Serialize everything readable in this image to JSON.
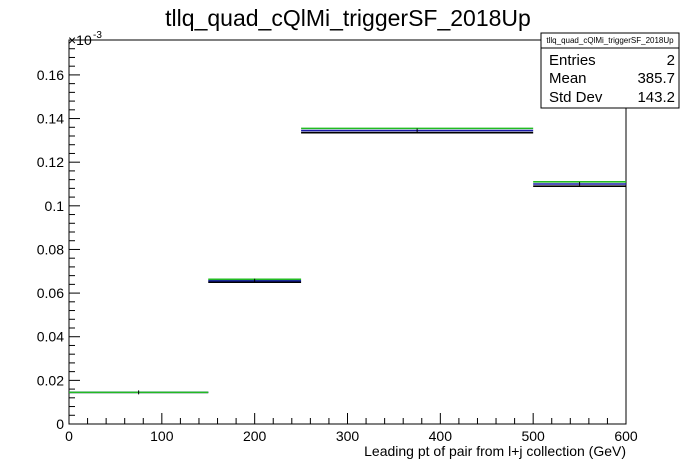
{
  "chart_data": {
    "type": "histogram",
    "title": "tllq_quad_cQlMi_triggerSF_2018Up",
    "xlabel": "Leading pt of pair from l+j collection (GeV)",
    "ylabel": "",
    "y_exponent_label": "×10",
    "y_exponent": "-3",
    "xlim": [
      0,
      600
    ],
    "ylim": [
      0,
      0.176
    ],
    "x_ticks": [
      0,
      100,
      200,
      300,
      400,
      500,
      600
    ],
    "x_tick_labels": [
      "0",
      "100",
      "200",
      "300",
      "400",
      "500",
      "600"
    ],
    "y_ticks": [
      0,
      0.02,
      0.04,
      0.06,
      0.08,
      0.1,
      0.12,
      0.14,
      0.16
    ],
    "y_tick_labels": [
      "0",
      "0.02",
      "0.04",
      "0.06",
      "0.08",
      "0.1",
      "0.12",
      "0.14",
      "0.16"
    ],
    "bins": [
      {
        "x_low": 0,
        "x_high": 150,
        "value": 0.0145
      },
      {
        "x_low": 150,
        "x_high": 250,
        "value": 0.0657
      },
      {
        "x_low": 250,
        "x_high": 500,
        "value": 0.1345
      },
      {
        "x_low": 500,
        "x_high": 600,
        "value": 0.11
      }
    ],
    "series": [
      {
        "color": "#000000",
        "values": [
          0.0145,
          0.065,
          0.1335,
          0.109
        ]
      },
      {
        "color": "#1a1aa8",
        "values": [
          0.0145,
          0.0657,
          0.1345,
          0.11
        ]
      },
      {
        "color": "#22bb22",
        "values": [
          0.0145,
          0.0663,
          0.1355,
          0.111
        ]
      }
    ],
    "stats": {
      "name": "tllq_quad_cQlMi_triggerSF_2018Up",
      "rows": [
        {
          "label": "Entries",
          "value": "2"
        },
        {
          "label": "Mean",
          "value": "385.7"
        },
        {
          "label": "Std Dev",
          "value": "143.2"
        }
      ]
    }
  }
}
